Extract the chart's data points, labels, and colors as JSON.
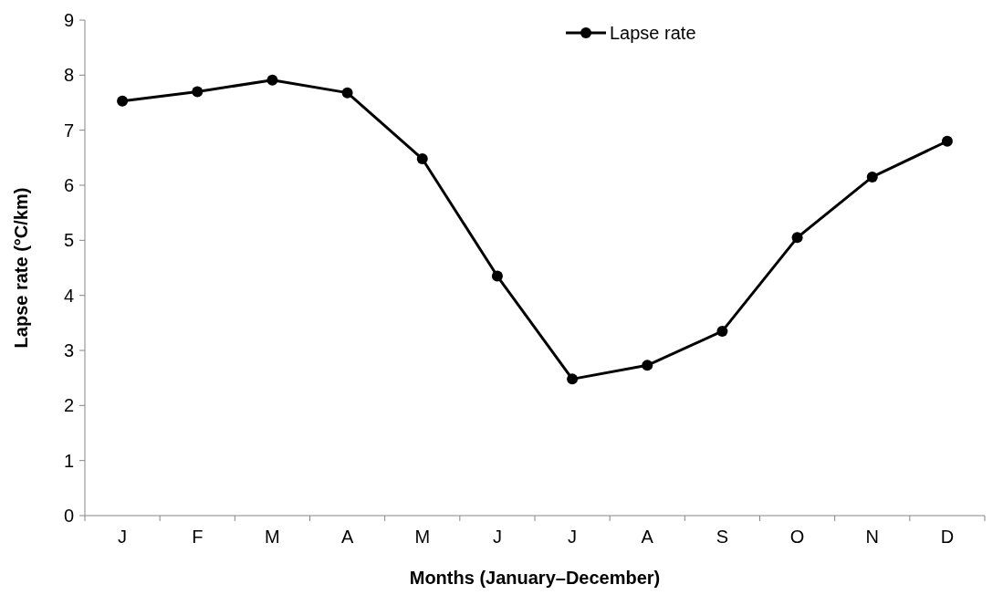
{
  "chart_data": {
    "type": "line",
    "xlabel": "Months (January–December)",
    "ylabel": "Lapse rate (°C/km)",
    "categories": [
      "J",
      "F",
      "M",
      "A",
      "M",
      "J",
      "J",
      "A",
      "S",
      "O",
      "N",
      "D"
    ],
    "series": [
      {
        "name": "Lapse rate",
        "color": "#000000",
        "values": [
          7.53,
          7.7,
          7.91,
          7.68,
          6.48,
          4.35,
          2.48,
          2.73,
          3.35,
          5.05,
          6.15,
          6.8
        ]
      }
    ],
    "ylim": [
      0,
      9
    ],
    "yticks": [
      0,
      1,
      2,
      3,
      4,
      5,
      6,
      7,
      8,
      9
    ],
    "grid": false,
    "legend": "top right",
    "marker": "circle",
    "line_style": "solid"
  }
}
